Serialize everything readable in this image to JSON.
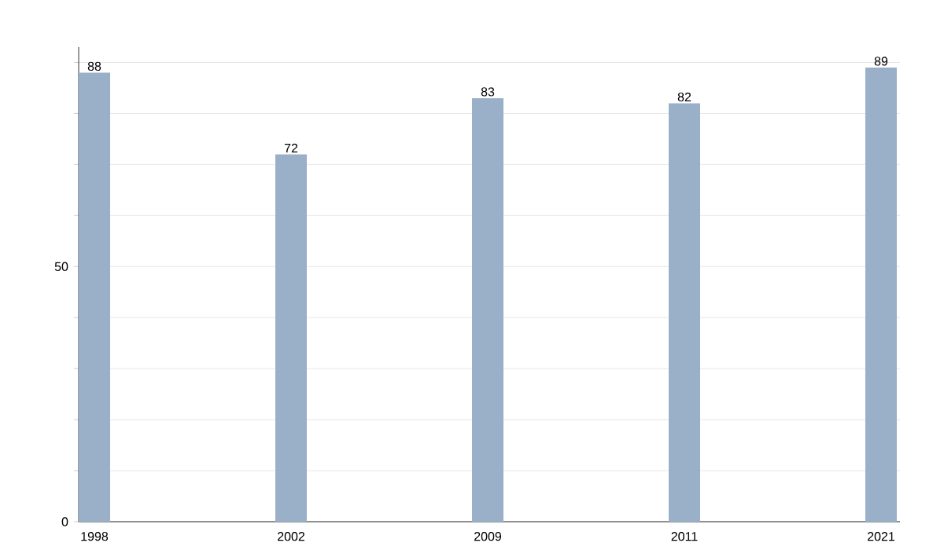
{
  "chart_data": {
    "type": "bar",
    "categories": [
      "1998",
      "2002",
      "2009",
      "2011",
      "2021"
    ],
    "values": [
      88,
      72,
      83,
      82,
      89
    ],
    "color": "#9ab0c9",
    "data_labels": true,
    "grid": "y",
    "ylim": [
      0,
      93
    ],
    "yticks": [
      0,
      {
        "value": 10,
        "label": null
      },
      {
        "value": 20,
        "label": null
      },
      {
        "value": 30,
        "label": null
      },
      {
        "value": 40,
        "label": null
      },
      50,
      {
        "value": 60,
        "label": null
      },
      {
        "value": 70,
        "label": null
      },
      {
        "value": 80,
        "label": null
      },
      {
        "value": 90,
        "label": null
      }
    ]
  }
}
